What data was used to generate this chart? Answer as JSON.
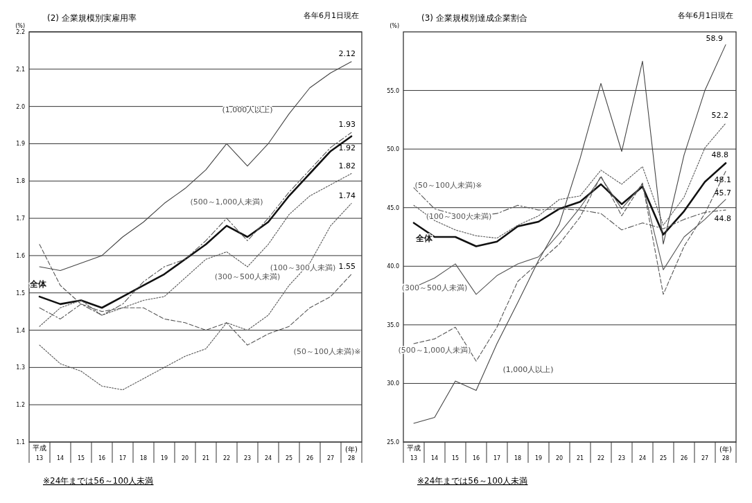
{
  "chart_data": [
    {
      "type": "line",
      "title": "(2) 企業規模別実雇用率",
      "subtitle": "各年6月1日現在",
      "ylabel": "(%)",
      "categories": [
        "13",
        "14",
        "15",
        "16",
        "17",
        "18",
        "19",
        "20",
        "21",
        "22",
        "23",
        "24",
        "25",
        "26",
        "27",
        "28"
      ],
      "ylim": [
        1.1,
        2.2
      ],
      "yticks": [
        1.1,
        1.2,
        1.3,
        1.4,
        1.5,
        1.6,
        1.7,
        1.8,
        1.9,
        {
          "value": 2,
          "label": "2.0"
        },
        2.1,
        2.2
      ],
      "grid": "y",
      "annotations": [
        "平成",
        "(年)",
        "※24年までは56～100人未満"
      ],
      "series": [
        {
          "name": "全体",
          "color": "#111111",
          "line_style": "solid",
          "values": [
            1.49,
            1.47,
            1.48,
            1.46,
            1.49,
            1.52,
            1.55,
            1.59,
            1.63,
            1.68,
            1.65,
            1.69,
            1.76,
            1.82,
            1.88,
            1.92
          ],
          "value_labels": [
            null,
            null,
            null,
            null,
            null,
            null,
            null,
            null,
            null,
            null,
            null,
            null,
            null,
            null,
            null,
            "1.92"
          ]
        },
        {
          "name": "(1,000人以上)",
          "color": "#444444",
          "line_style": "solid",
          "values": [
            1.57,
            1.56,
            1.58,
            1.6,
            1.65,
            1.69,
            1.74,
            1.78,
            1.83,
            1.9,
            1.84,
            1.9,
            1.98,
            2.05,
            2.09,
            2.12
          ],
          "value_labels": [
            null,
            null,
            null,
            null,
            null,
            null,
            null,
            null,
            null,
            null,
            null,
            null,
            null,
            null,
            null,
            "2.12"
          ]
        },
        {
          "name": "(500～1,000人未満)",
          "color": "#555555",
          "line_style": "dashdot",
          "values": [
            1.46,
            1.43,
            1.47,
            1.44,
            1.47,
            1.53,
            1.57,
            1.59,
            1.64,
            1.7,
            1.64,
            1.7,
            1.77,
            1.83,
            1.89,
            1.93
          ],
          "value_labels": [
            null,
            null,
            null,
            null,
            null,
            null,
            null,
            null,
            null,
            null,
            null,
            null,
            null,
            null,
            null,
            "1.93"
          ]
        },
        {
          "name": "(300～500人未満)",
          "color": "#555555",
          "line_style": "dotted",
          "values": [
            1.41,
            1.46,
            1.48,
            1.44,
            1.46,
            1.48,
            1.49,
            1.54,
            1.59,
            1.61,
            1.57,
            1.63,
            1.71,
            1.76,
            1.79,
            1.82
          ],
          "value_labels": [
            null,
            null,
            null,
            null,
            null,
            null,
            null,
            null,
            null,
            null,
            null,
            null,
            null,
            null,
            null,
            "1.82"
          ]
        },
        {
          "name": "(100～300人未満)",
          "color": "#555555",
          "line_style": "dotted",
          "values": [
            1.36,
            1.31,
            1.29,
            1.25,
            1.24,
            1.27,
            1.3,
            1.33,
            1.35,
            1.42,
            1.4,
            1.44,
            1.52,
            1.58,
            1.68,
            1.74
          ],
          "value_labels": [
            null,
            null,
            null,
            null,
            null,
            null,
            null,
            null,
            null,
            null,
            null,
            null,
            null,
            null,
            null,
            "1.74"
          ]
        },
        {
          "name": "(50～100人未満)※",
          "color": "#555555",
          "line_style": "dashed",
          "values": [
            1.63,
            1.52,
            1.47,
            1.45,
            1.46,
            1.46,
            1.43,
            1.42,
            1.4,
            1.42,
            1.36,
            1.39,
            1.41,
            1.46,
            1.49,
            1.55
          ],
          "value_labels": [
            null,
            null,
            null,
            null,
            null,
            null,
            null,
            null,
            null,
            null,
            null,
            null,
            null,
            null,
            null,
            "1.55"
          ]
        }
      ]
    },
    {
      "type": "line",
      "title": "(3) 企業規模別達成企業割合",
      "subtitle": "各年6月1日現在",
      "ylabel": "(%)",
      "categories": [
        "13",
        "14",
        "15",
        "16",
        "17",
        "18",
        "19",
        "20",
        "21",
        "22",
        "23",
        "24",
        "25",
        "26",
        "27",
        "28"
      ],
      "ylim": [
        25,
        60
      ],
      "yticks": [
        {
          "value": 25,
          "label": "25.0"
        },
        {
          "value": 30,
          "label": "30.0"
        },
        {
          "value": 35,
          "label": "35.0"
        },
        {
          "value": 40,
          "label": "40.0"
        },
        {
          "value": 45,
          "label": "45.0"
        },
        {
          "value": 50,
          "label": "50.0"
        },
        {
          "value": 55,
          "label": "55.0"
        }
      ],
      "grid": "y",
      "annotations": [
        "平成",
        "(年)",
        "※24年までは56～100人未満"
      ],
      "series": [
        {
          "name": "全体",
          "color": "#111111",
          "line_style": "solid",
          "values": [
            43.7,
            42.5,
            42.5,
            41.7,
            42.1,
            43.4,
            43.8,
            44.9,
            45.5,
            47.0,
            45.3,
            46.8,
            42.7,
            44.7,
            47.2,
            48.8
          ],
          "value_labels": [
            null,
            null,
            null,
            null,
            null,
            null,
            null,
            null,
            null,
            null,
            null,
            null,
            null,
            null,
            null,
            "48.8"
          ]
        },
        {
          "name": "(1,000人以上)",
          "color": "#444444",
          "line_style": "solid",
          "values": [
            26.6,
            27.1,
            30.2,
            29.4,
            33.4,
            36.9,
            40.5,
            43.6,
            49.2,
            55.6,
            49.8,
            57.5,
            41.9,
            49.5,
            55.0,
            58.9
          ],
          "value_labels": [
            null,
            null,
            null,
            null,
            null,
            null,
            null,
            null,
            null,
            null,
            null,
            null,
            null,
            null,
            null,
            "58.9"
          ]
        },
        {
          "name": "(500～1,000人未満)",
          "color": "#555555",
          "line_style": "dashed",
          "values": [
            33.4,
            33.8,
            34.8,
            31.9,
            34.8,
            38.7,
            40.3,
            41.9,
            44.2,
            47.7,
            44.3,
            47.1,
            37.6,
            41.7,
            44.5,
            48.1
          ],
          "value_labels": [
            null,
            null,
            null,
            null,
            null,
            null,
            null,
            null,
            null,
            null,
            null,
            null,
            null,
            null,
            null,
            "48.1"
          ]
        },
        {
          "name": "(300～500人未満)",
          "color": "#555555",
          "line_style": "solid",
          "values": [
            38.2,
            39.0,
            40.2,
            37.6,
            39.2,
            40.2,
            40.8,
            42.8,
            45.0,
            47.6,
            44.9,
            47.0,
            39.7,
            42.5,
            44.0,
            45.7
          ],
          "value_labels": [
            null,
            null,
            null,
            null,
            null,
            null,
            null,
            null,
            null,
            null,
            null,
            null,
            null,
            null,
            null,
            "45.7"
          ]
        },
        {
          "name": "(100～300人未満)",
          "color": "#555555",
          "line_style": "dotted",
          "values": [
            45.2,
            43.9,
            43.1,
            42.6,
            42.4,
            43.5,
            44.3,
            45.7,
            46.0,
            48.2,
            47.0,
            48.5,
            43.5,
            45.9,
            50.1,
            52.2
          ],
          "value_labels": [
            null,
            null,
            null,
            null,
            null,
            null,
            null,
            null,
            null,
            null,
            null,
            null,
            null,
            null,
            null,
            "52.2"
          ]
        },
        {
          "name": "(50～100人未満)※",
          "color": "#555555",
          "line_style": "dashdot",
          "values": [
            46.7,
            44.9,
            44.4,
            44.3,
            44.5,
            45.2,
            44.8,
            44.9,
            44.8,
            44.5,
            43.1,
            43.7,
            43.2,
            44.0,
            44.6,
            44.8
          ],
          "value_labels": [
            null,
            null,
            null,
            null,
            null,
            null,
            null,
            null,
            null,
            null,
            null,
            null,
            null,
            null,
            null,
            "44.8"
          ]
        }
      ]
    }
  ]
}
